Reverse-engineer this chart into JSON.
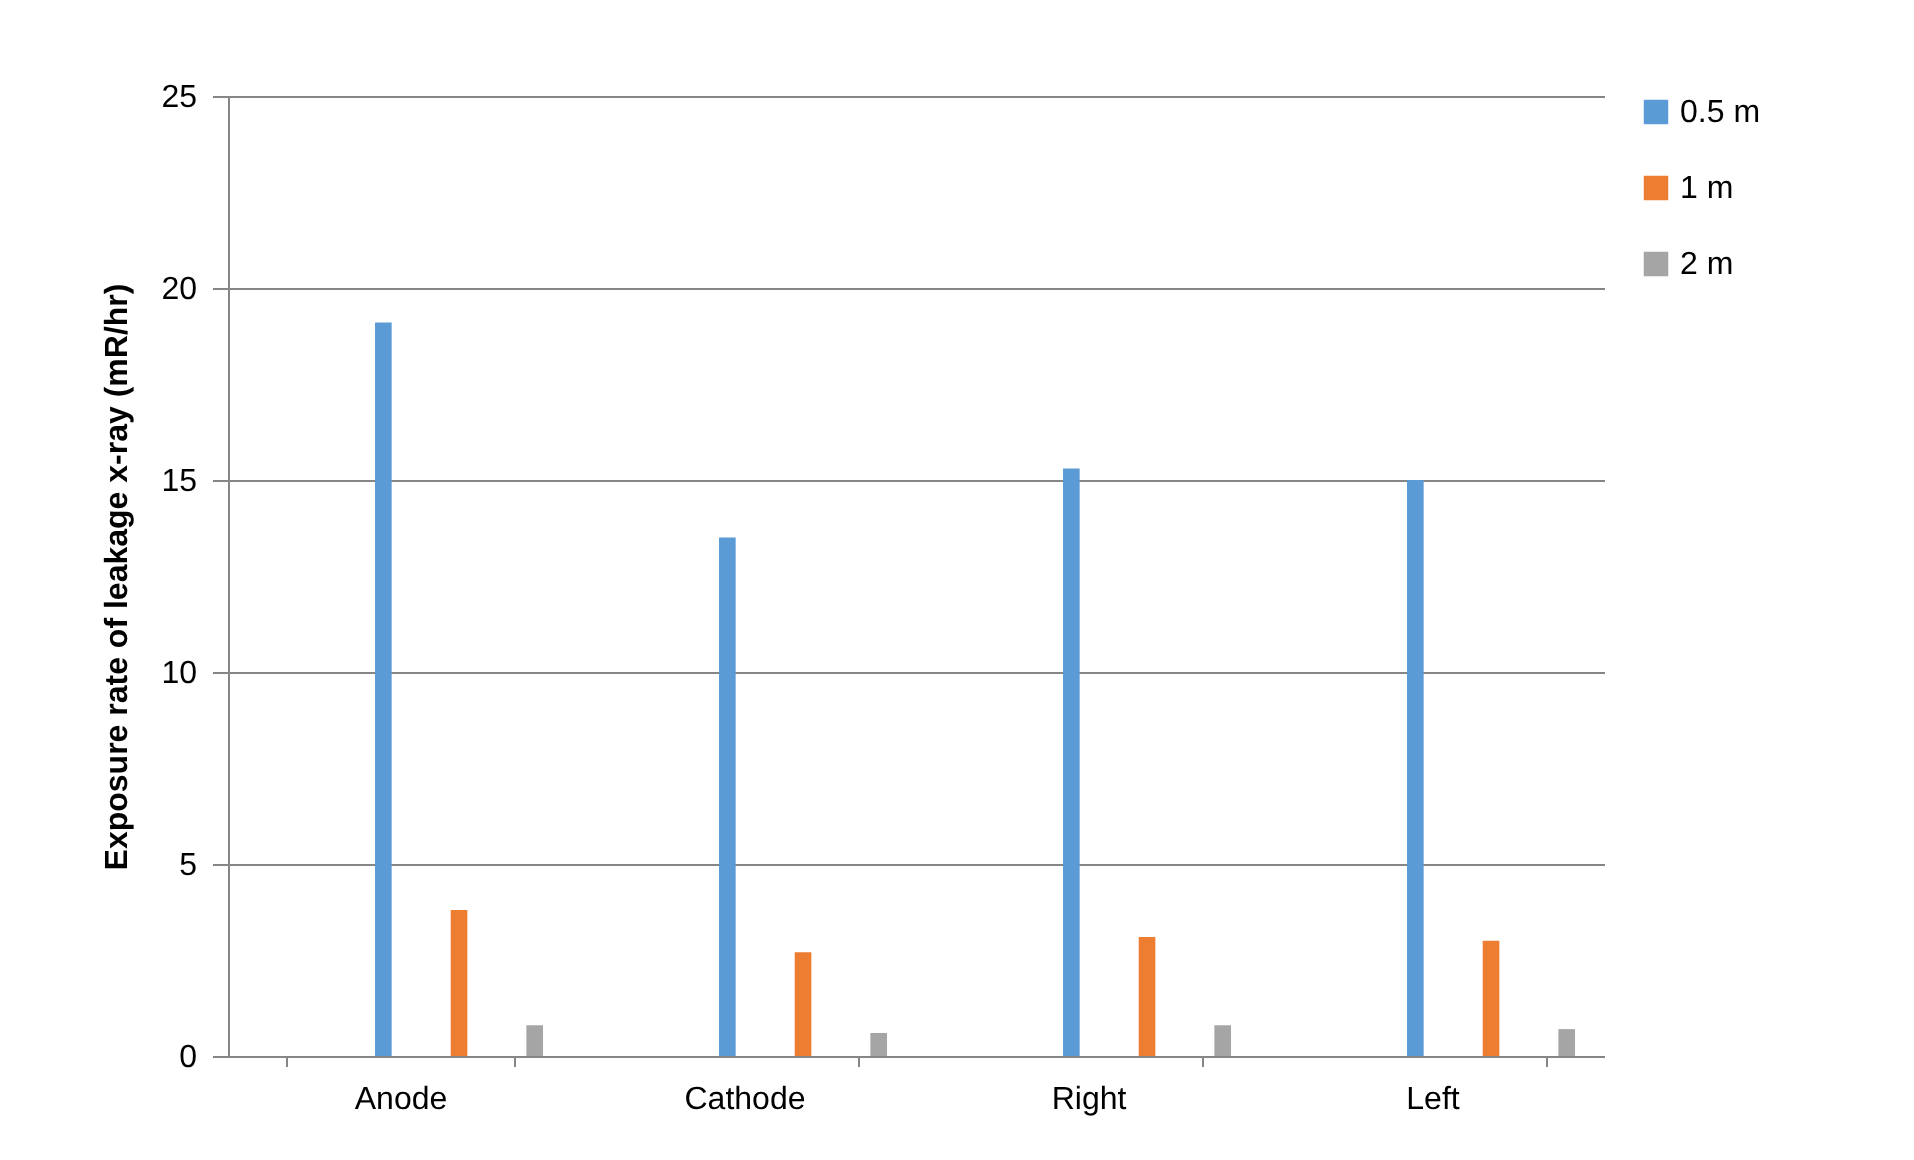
{
  "chart_data": {
    "type": "bar",
    "ylabel": "Exposure rate of leakage x-ray (mR/hr)",
    "categories": [
      "Anode",
      "Cathode",
      "Right",
      "Left"
    ],
    "series": [
      {
        "name": "0.5 m",
        "color": "#5b9bd5",
        "values": [
          19.1,
          13.5,
          15.3,
          15.0
        ]
      },
      {
        "name": "1 m",
        "color": "#ed7d31",
        "values": [
          3.8,
          2.7,
          3.1,
          3.0
        ]
      },
      {
        "name": "2 m",
        "color": "#a5a5a5",
        "values": [
          0.8,
          0.6,
          0.8,
          0.7
        ]
      }
    ],
    "ylim": [
      0,
      25
    ],
    "yticks": [
      0,
      5,
      10,
      15,
      20,
      25
    ],
    "grid": "y",
    "legend": "right"
  }
}
